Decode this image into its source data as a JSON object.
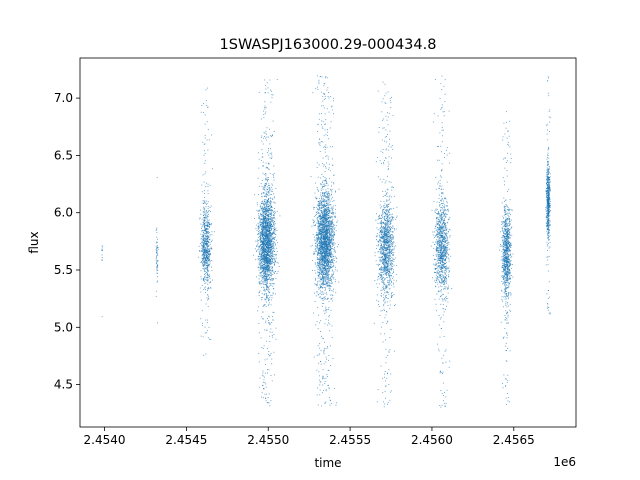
{
  "chart_data": {
    "type": "scatter",
    "title": "1SWASPJ163000.29-000434.8",
    "xlabel": "time",
    "ylabel": "flux",
    "x_offset_label": "1e6",
    "xlim": [
      2453850,
      2456880
    ],
    "ylim": [
      4.13,
      7.35
    ],
    "x_ticks": [
      2454000,
      2454500,
      2455000,
      2455500,
      2456000,
      2456500
    ],
    "x_tick_labels": [
      "2.4540",
      "2.4545",
      "2.4550",
      "2.4555",
      "2.4560",
      "2.4565"
    ],
    "y_ticks": [
      4.5,
      5.0,
      5.5,
      6.0,
      6.5,
      7.0
    ],
    "y_tick_labels": [
      "4.5",
      "5.0",
      "5.5",
      "6.0",
      "6.5",
      "7.0"
    ],
    "grid": false,
    "legend": "none",
    "marker_color": "#1f77b4",
    "series": [
      {
        "points_per_cluster": "approximate",
        "clusters": [
          {
            "x_center": 2453985,
            "x_spread": 2,
            "y_center": 5.6,
            "y_min": 4.95,
            "y_max": 6.05,
            "count": 12
          },
          {
            "x_center": 2454320,
            "x_spread": 10,
            "y_center": 5.6,
            "y_min": 4.8,
            "y_max": 6.55,
            "count": 60
          },
          {
            "x_center": 2454620,
            "x_spread": 45,
            "y_center": 5.7,
            "y_min": 4.7,
            "y_max": 7.15,
            "count": 700
          },
          {
            "x_center": 2454990,
            "x_spread": 70,
            "y_center": 5.75,
            "y_min": 4.3,
            "y_max": 7.2,
            "count": 2200
          },
          {
            "x_center": 2455345,
            "x_spread": 80,
            "y_center": 5.75,
            "y_min": 4.3,
            "y_max": 7.2,
            "count": 2400
          },
          {
            "x_center": 2455720,
            "x_spread": 70,
            "y_center": 5.7,
            "y_min": 4.3,
            "y_max": 7.15,
            "count": 1200
          },
          {
            "x_center": 2456060,
            "x_spread": 60,
            "y_center": 5.7,
            "y_min": 4.3,
            "y_max": 7.2,
            "count": 1000
          },
          {
            "x_center": 2456455,
            "x_spread": 40,
            "y_center": 5.65,
            "y_min": 4.3,
            "y_max": 6.9,
            "count": 900
          },
          {
            "x_center": 2456710,
            "x_spread": 15,
            "y_center": 6.1,
            "y_min": 5.1,
            "y_max": 7.2,
            "count": 600
          }
        ]
      }
    ]
  }
}
